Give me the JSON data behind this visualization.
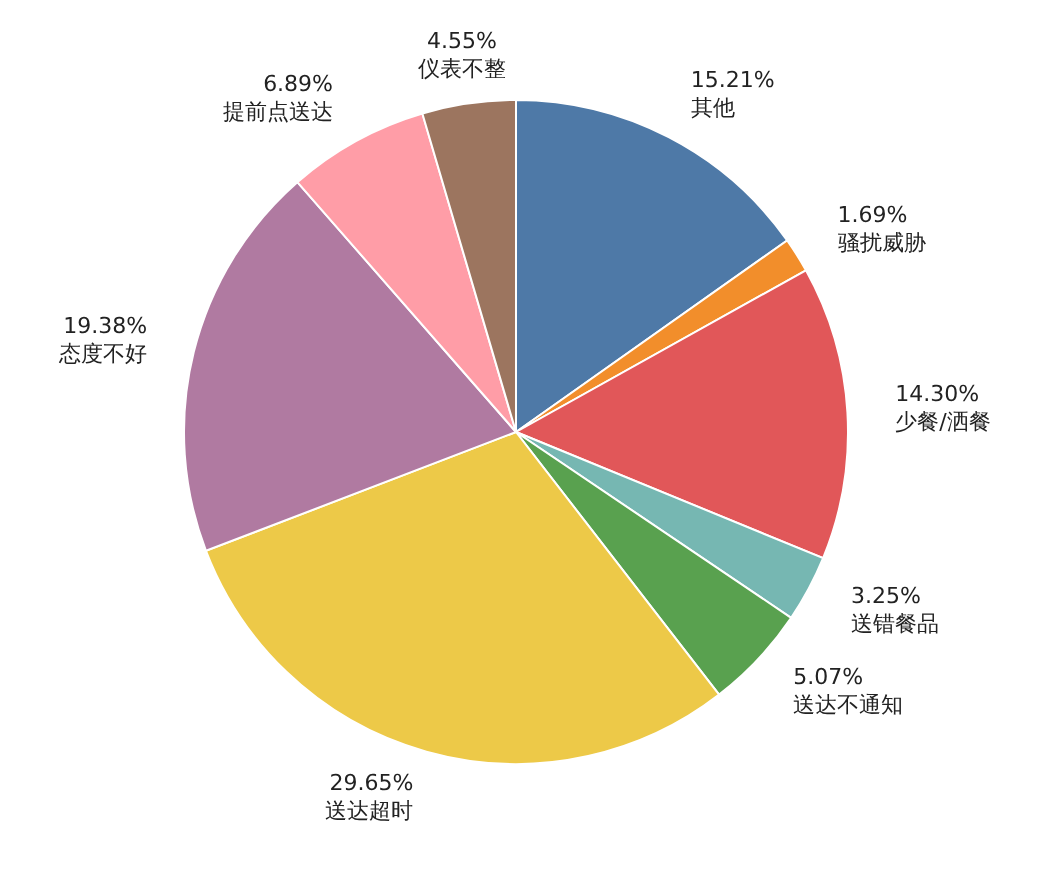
{
  "chart_data": {
    "type": "pie",
    "categories": [
      "其他",
      "骚扰威胁",
      "少餐/洒餐",
      "送错餐品",
      "送达不通知",
      "送达超时",
      "态度不好",
      "提前点送达",
      "仪表不整"
    ],
    "values": [
      15.21,
      1.69,
      14.3,
      3.25,
      5.07,
      29.65,
      19.38,
      6.89,
      4.55
    ],
    "value_labels": [
      "15.21%",
      "1.69%",
      "14.30%",
      "3.25%",
      "5.07%",
      "29.65%",
      "19.38%",
      "6.89%",
      "4.55%"
    ],
    "colors": [
      "#4e79a7",
      "#f28e2b",
      "#e15759",
      "#76b7b2",
      "#59a14f",
      "#edc948",
      "#b07aa1",
      "#ff9da7",
      "#9c755f"
    ]
  }
}
